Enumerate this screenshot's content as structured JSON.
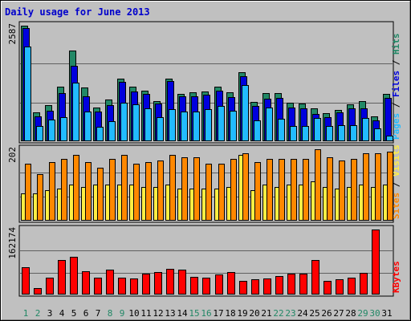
{
  "chart_data": {
    "type": "bar",
    "title": "Daily usage for June 2013",
    "colors": {
      "background": "#c0c0c0",
      "hits": "#228866",
      "files": "#0000dd",
      "pages": "#22bbff",
      "visits": "#ff8800",
      "sites": "#ffee44",
      "kbytes": "#ff0000",
      "weekend_label": "#228866",
      "title": "#0000cc"
    },
    "categories": [
      "1",
      "2",
      "3",
      "4",
      "5",
      "6",
      "7",
      "8",
      "9",
      "10",
      "11",
      "12",
      "13",
      "14",
      "15",
      "16",
      "17",
      "18",
      "19",
      "20",
      "21",
      "22",
      "23",
      "24",
      "25",
      "26",
      "27",
      "28",
      "29",
      "30",
      "31"
    ],
    "weekend_days": [
      1,
      2,
      8,
      9,
      15,
      16,
      22,
      23,
      29,
      30
    ],
    "panels": [
      {
        "name": "hits-files-pages",
        "ymax_label": "2587",
        "ymax": 2587,
        "legend": [
          {
            "text": "Pages",
            "color": "#22bbff"
          },
          {
            "text": " / ",
            "color": "#000000"
          },
          {
            "text": "Files",
            "color": "#0000dd"
          },
          {
            "text": " / ",
            "color": "#000000"
          },
          {
            "text": "Hits",
            "color": "#228866"
          }
        ],
        "series": [
          {
            "name": "Hits",
            "values": [
              2587,
              640,
              800,
              1220,
              2030,
              1200,
              740,
              920,
              1400,
              1210,
              1130,
              890,
              1390,
              1050,
              1080,
              1110,
              1220,
              1080,
              1540,
              860,
              1060,
              1060,
              850,
              840,
              730,
              620,
              690,
              820,
              880,
              540,
              1050
            ]
          },
          {
            "name": "Files",
            "values": [
              2540,
              550,
              670,
              1060,
              1690,
              990,
              650,
              800,
              1320,
              1100,
              1050,
              830,
              1330,
              990,
              1000,
              1040,
              1130,
              970,
              1450,
              780,
              940,
              960,
              740,
              720,
              600,
              530,
              630,
              720,
              720,
              460,
              960
            ]
          },
          {
            "name": "Pages",
            "values": [
              2120,
              330,
              470,
              520,
              1300,
              650,
              300,
              440,
              850,
              820,
              720,
              530,
              700,
              650,
              650,
              700,
              780,
              670,
              1250,
              450,
              740,
              480,
              330,
              330,
              510,
              320,
              350,
              350,
              500,
              270,
              110
            ]
          }
        ]
      },
      {
        "name": "visits-sites",
        "ymax_label": "202",
        "ymax": 202,
        "legend": [
          {
            "text": "Sites",
            "color": "#ff8800"
          },
          {
            "text": " / ",
            "color": "#000000"
          },
          {
            "text": "Visits",
            "color": "#ffee44"
          }
        ],
        "series": [
          {
            "name": "Visits",
            "values": [
              160,
              130,
              165,
              175,
              185,
              165,
              150,
              175,
              185,
              160,
              165,
              170,
              185,
              180,
              180,
              160,
              160,
              175,
              190,
              165,
              175,
              175,
              175,
              175,
              202,
              180,
              170,
              175,
              190,
              190,
              195
            ]
          },
          {
            "name": "Sites",
            "values": [
              75,
              75,
              85,
              90,
              100,
              95,
              100,
              100,
              100,
              100,
              95,
              95,
              100,
              90,
              90,
              90,
              90,
              95,
              185,
              85,
              100,
              95,
              100,
              100,
              110,
              95,
              90,
              95,
              100,
              95,
              100
            ]
          }
        ]
      },
      {
        "name": "kbytes",
        "ymax_label": "162174",
        "ymax": 162174,
        "legend": [
          {
            "text": "KBytes",
            "color": "#ff0000"
          }
        ],
        "series": [
          {
            "name": "KBytes",
            "values": [
              66000,
              14000,
              40000,
              85000,
              94000,
              57000,
              40000,
              60000,
              41000,
              39000,
              51000,
              55000,
              62000,
              60000,
              42000,
              41000,
              48000,
              54000,
              33000,
              37000,
              38000,
              44000,
              50000,
              50000,
              85000,
              32000,
              36000,
              41000,
              53000,
              162174,
              0
            ]
          }
        ]
      }
    ]
  }
}
